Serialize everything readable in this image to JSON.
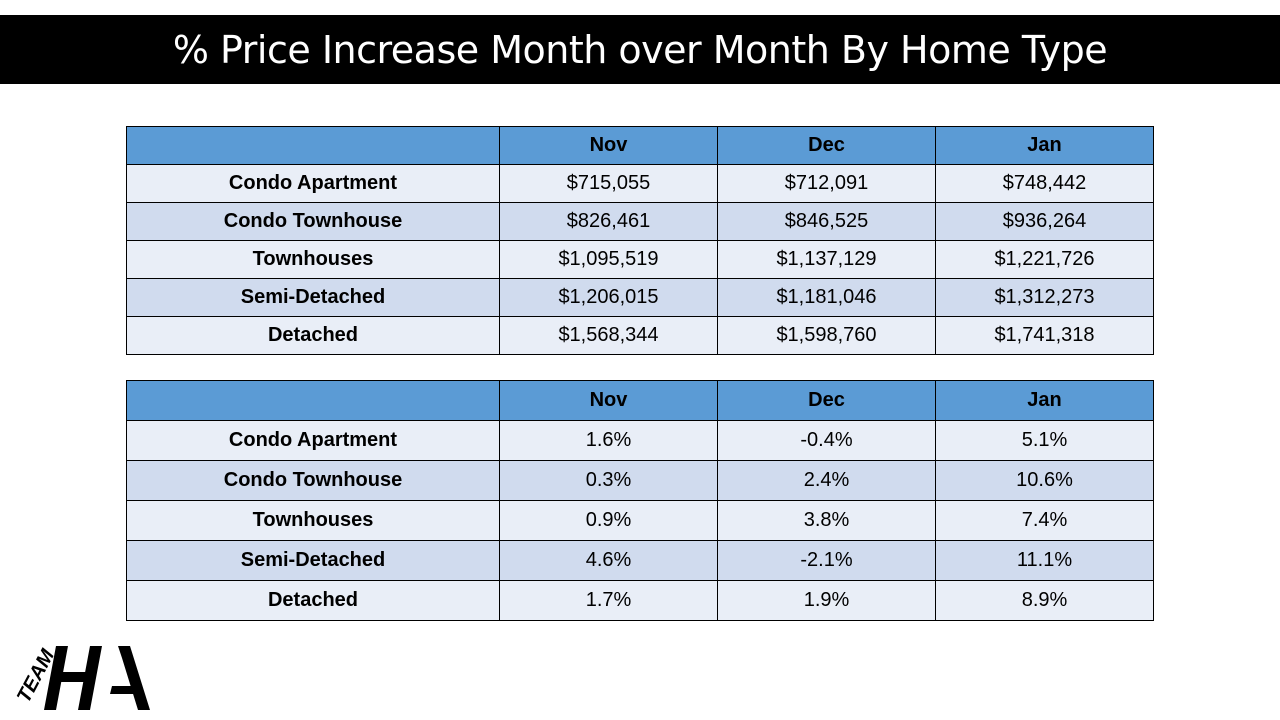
{
  "title": "% Price Increase Month over Month By Home Type",
  "colors": {
    "title_bg": "#000000",
    "header_bg": "#5b9bd5",
    "row_light": "#e9eef7",
    "row_dark": "#d0dbee"
  },
  "prices_table": {
    "columns": [
      "",
      "Nov",
      "Dec",
      "Jan"
    ],
    "rows": [
      [
        "Condo Apartment",
        "$715,055",
        "$712,091",
        "$748,442"
      ],
      [
        "Condo Townhouse",
        "$826,461",
        "$846,525",
        "$936,264"
      ],
      [
        "Townhouses",
        "$1,095,519",
        "$1,137,129",
        "$1,221,726"
      ],
      [
        "Semi-Detached",
        "$1,206,015",
        "$1,181,046",
        "$1,312,273"
      ],
      [
        "Detached",
        "$1,568,344",
        "$1,598,760",
        "$1,741,318"
      ]
    ]
  },
  "pct_table": {
    "columns": [
      "",
      "Nov",
      "Dec",
      "Jan"
    ],
    "rows": [
      [
        "Condo Apartment",
        "1.6%",
        "-0.4%",
        "5.1%"
      ],
      [
        "Condo Townhouse",
        "0.3%",
        "2.4%",
        "10.6%"
      ],
      [
        "Townhouses",
        "0.9%",
        "3.8%",
        "7.4%"
      ],
      [
        "Semi-Detached",
        "4.6%",
        "-2.1%",
        "11.1%"
      ],
      [
        "Detached",
        "1.7%",
        "1.9%",
        "8.9%"
      ]
    ]
  },
  "logo": {
    "text_team": "TEAM",
    "text_initials": "HA"
  }
}
